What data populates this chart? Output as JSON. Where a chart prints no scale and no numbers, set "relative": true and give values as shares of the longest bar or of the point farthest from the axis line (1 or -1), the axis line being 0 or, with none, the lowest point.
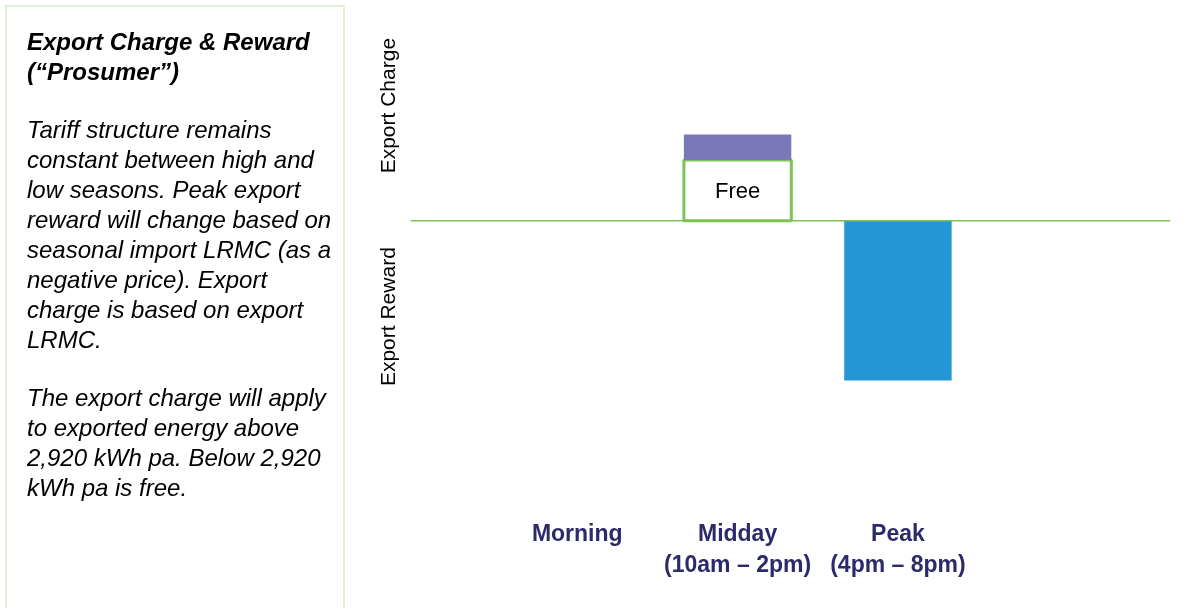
{
  "chart_data": {
    "type": "bar",
    "relative": true,
    "stacked": true,
    "title": "Export Charge & Reward (“Prosumer”)",
    "categories": [
      "Morning",
      "Midday\n(10am – 2pm)",
      "Peak\n(4pm – 8pm)"
    ],
    "series": [
      {
        "name": "Free",
        "color": "#ffffff",
        "values": [
          null,
          0.38,
          null
        ]
      },
      {
        "color": "#7b78b8",
        "values": [
          null,
          0.16,
          null
        ]
      },
      {
        "color": "#2396d3",
        "values": [
          null,
          null,
          -1
        ]
      }
    ],
    "ref_lines": [
      {
        "axis": "y",
        "value": 0,
        "color": "#7cc254"
      }
    ],
    "annotations": [
      "Tariff structure remains constant between high and low seasons. Peak export reward will change based on seasonal import LRMC (as a negative price). Export charge is based on export LRMC.",
      "The export charge will apply to exported energy above 2,920 kWh pa. Below 2,920 kWh pa is free.",
      "Export Charge",
      "Export Reward"
    ],
    "grid": false
  }
}
